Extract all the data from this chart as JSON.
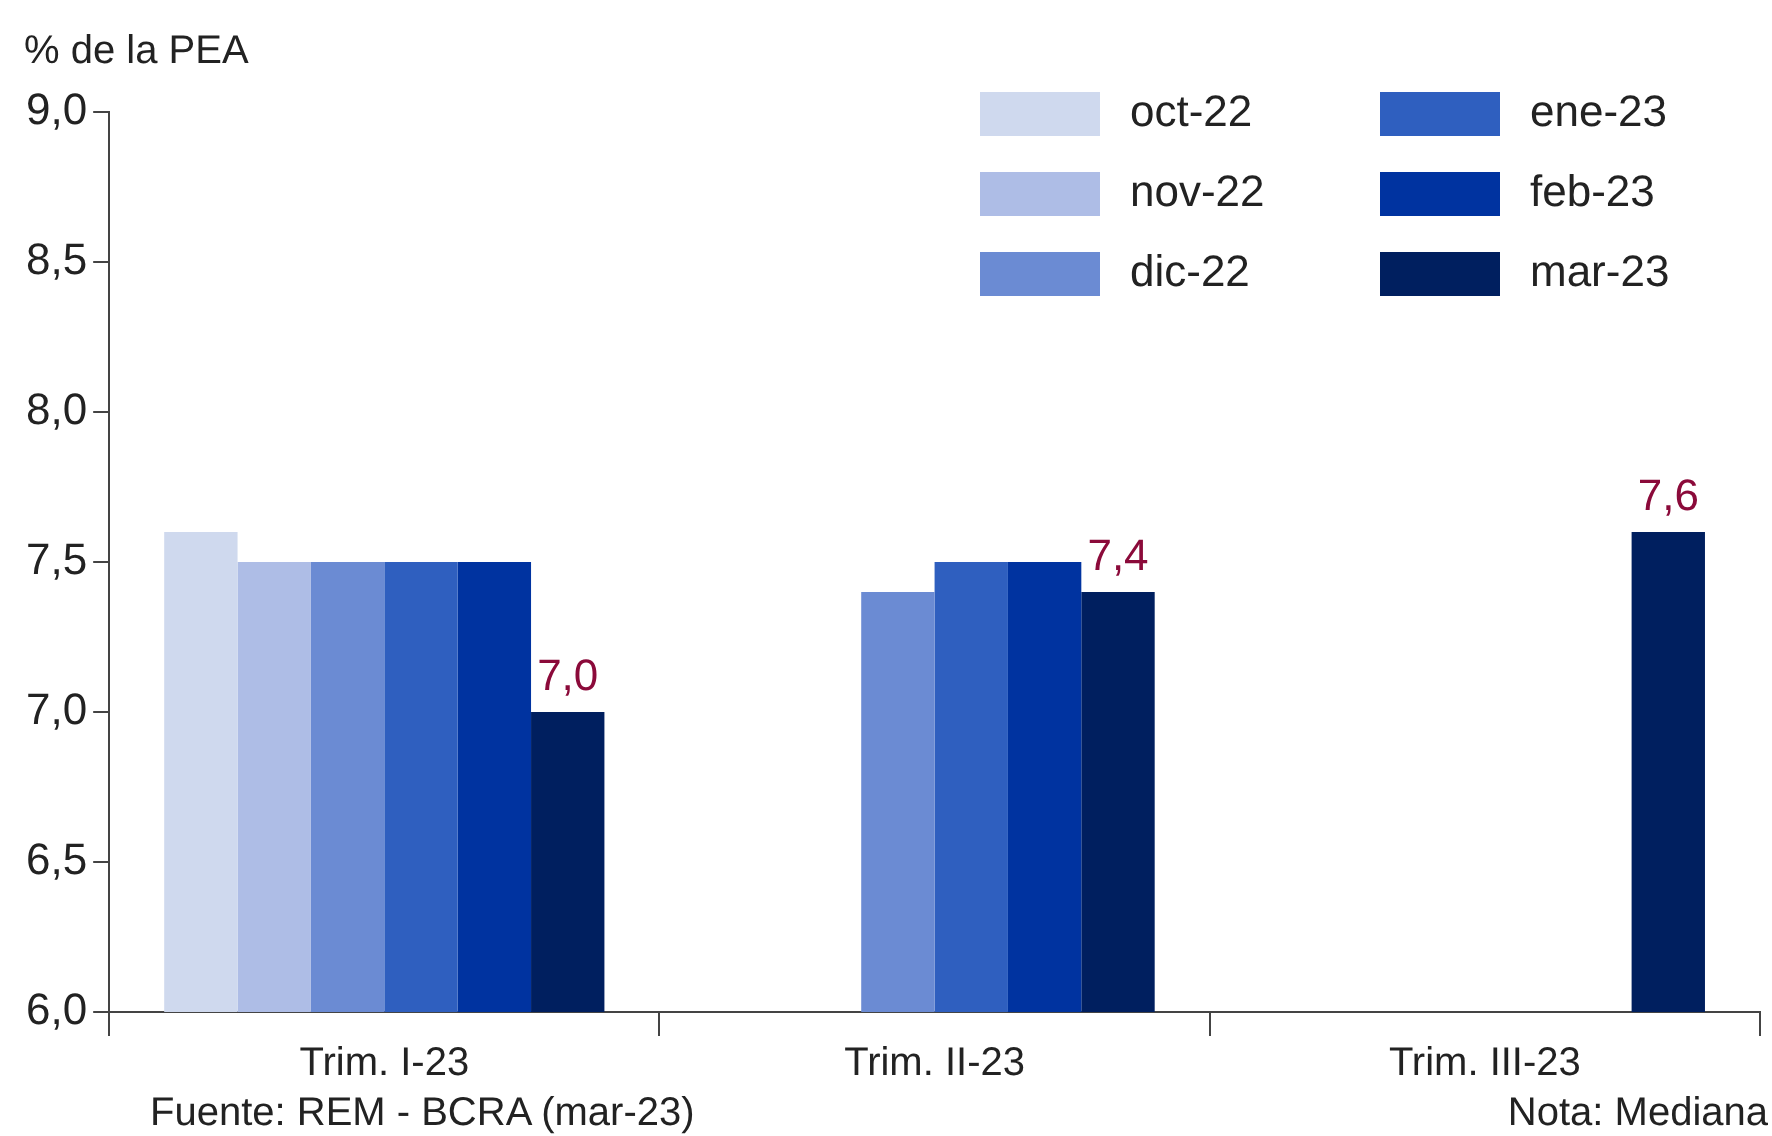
{
  "chart_data": {
    "type": "bar",
    "ylabel": "% de la PEA",
    "categories": [
      "Trim. I-23",
      "Trim. II-23",
      "Trim. III-23"
    ],
    "series": [
      {
        "name": "oct-22",
        "color": "#cfd9ee",
        "values": [
          7.6,
          null,
          null
        ]
      },
      {
        "name": "nov-22",
        "color": "#aebde6",
        "values": [
          7.5,
          null,
          null
        ]
      },
      {
        "name": "dic-22",
        "color": "#6b8bd3",
        "values": [
          7.5,
          7.4,
          null
        ]
      },
      {
        "name": "ene-23",
        "color": "#2f5fbf",
        "values": [
          7.5,
          7.5,
          null
        ]
      },
      {
        "name": "feb-23",
        "color": "#0033a0",
        "values": [
          7.5,
          7.5,
          null
        ]
      },
      {
        "name": "mar-23",
        "color": "#001f5f",
        "values": [
          7.0,
          7.4,
          7.6
        ],
        "value_labels": [
          "7,0",
          "7,4",
          "7,6"
        ]
      }
    ],
    "ylim": [
      6.0,
      9.0
    ],
    "yticks": [
      {
        "value": 6.0,
        "label": "6,0"
      },
      {
        "value": 6.5,
        "label": "6,5"
      },
      {
        "value": 7.0,
        "label": "7,0"
      },
      {
        "value": 7.5,
        "label": "7,5"
      },
      {
        "value": 8.0,
        "label": "8,0"
      },
      {
        "value": 8.5,
        "label": "8,5"
      },
      {
        "value": 9.0,
        "label": "9,0"
      }
    ],
    "grid": false,
    "legend": "top right",
    "annotations": [
      "Fuente: REM - BCRA (mar-23)",
      "Nota: Mediana"
    ]
  }
}
